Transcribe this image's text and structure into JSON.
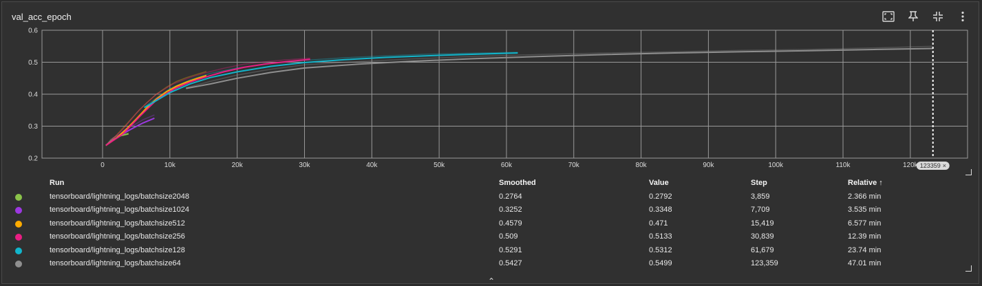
{
  "card": {
    "title": "val_acc_epoch",
    "tools": [
      {
        "name": "fit-domain-icon"
      },
      {
        "name": "pin-icon"
      },
      {
        "name": "collapse-icon"
      },
      {
        "name": "more-vert-icon"
      }
    ]
  },
  "chart_data": {
    "type": "line",
    "title": "val_acc_epoch",
    "xlim": [
      -9000,
      128500
    ],
    "ylim": [
      0.2,
      0.6
    ],
    "x_ticks": [
      0,
      10000,
      20000,
      30000,
      40000,
      50000,
      60000,
      70000,
      80000,
      90000,
      100000,
      110000,
      120000
    ],
    "x_tick_labels": [
      "0",
      "10k",
      "20k",
      "30k",
      "40k",
      "50k",
      "60k",
      "70k",
      "80k",
      "90k",
      "100k",
      "110k",
      "120k"
    ],
    "y_ticks": [
      0.2,
      0.3,
      0.4,
      0.5,
      0.6
    ],
    "y_tick_labels": [
      "0.2",
      "0.3",
      "0.4",
      "0.5",
      "0.6"
    ],
    "grid": true,
    "hover_step": 123359,
    "hover_step_label": "123359",
    "series": [
      {
        "name": "tensorboard/lightning_logs/batchsize2048",
        "color": "#8bc34a",
        "x": [
          500,
          1200,
          1930,
          2700,
          3859
        ],
        "y": [
          0.24,
          0.252,
          0.262,
          0.27,
          0.276
        ],
        "raw_x": [
          500,
          1200,
          1930,
          2700,
          3859
        ],
        "raw_y": [
          0.238,
          0.258,
          0.268,
          0.272,
          0.279
        ]
      },
      {
        "name": "tensorboard/lightning_logs/batchsize1024",
        "color": "#9c38e0",
        "x": [
          500,
          1500,
          2500,
          3500,
          4800,
          6000,
          7709
        ],
        "y": [
          0.24,
          0.256,
          0.268,
          0.282,
          0.297,
          0.31,
          0.325
        ],
        "raw_x": [
          500,
          1500,
          2500,
          3500,
          4800,
          6000,
          7709
        ],
        "raw_y": [
          0.24,
          0.262,
          0.275,
          0.292,
          0.305,
          0.32,
          0.335
        ]
      },
      {
        "name": "tensorboard/lightning_logs/batchsize512",
        "color": "#ffab00",
        "x": [
          500,
          2000,
          3500,
          5000,
          6500,
          8000,
          9500,
          11000,
          12500,
          14000,
          15419
        ],
        "y": [
          0.24,
          0.262,
          0.29,
          0.322,
          0.356,
          0.385,
          0.408,
          0.425,
          0.438,
          0.449,
          0.458
        ],
        "raw_x": [
          500,
          2000,
          3500,
          5000,
          6500,
          8000,
          9500,
          11000,
          12500,
          14000,
          15419
        ],
        "raw_y": [
          0.24,
          0.27,
          0.305,
          0.34,
          0.372,
          0.4,
          0.422,
          0.44,
          0.452,
          0.462,
          0.471
        ]
      },
      {
        "name": "tensorboard/lightning_logs/batchsize256",
        "color": "#e91e83",
        "x": [
          500,
          3000,
          5500,
          8000,
          10500,
          13000,
          15500,
          18000,
          21000,
          24000,
          27000,
          30839
        ],
        "y": [
          0.24,
          0.275,
          0.33,
          0.382,
          0.415,
          0.438,
          0.455,
          0.47,
          0.484,
          0.494,
          0.501,
          0.509
        ],
        "raw_x": [
          500,
          3000,
          5500,
          8000,
          10500,
          13000,
          15500,
          18000,
          21000,
          24000,
          27000,
          30839
        ],
        "raw_y": [
          0.24,
          0.29,
          0.352,
          0.4,
          0.432,
          0.452,
          0.468,
          0.481,
          0.494,
          0.501,
          0.507,
          0.513
        ]
      },
      {
        "name": "tensorboard/lightning_logs/batchsize128",
        "color": "#12b5cb",
        "x": [
          6200,
          8000,
          10000,
          13000,
          16000,
          20000,
          25000,
          30000,
          36000,
          42000,
          48000,
          54000,
          61679
        ],
        "y": [
          0.358,
          0.38,
          0.405,
          0.432,
          0.452,
          0.47,
          0.487,
          0.499,
          0.508,
          0.515,
          0.52,
          0.524,
          0.529
        ],
        "raw_x": [
          6200,
          8000,
          10000,
          13000,
          16000,
          20000,
          25000,
          30000,
          36000,
          42000,
          48000,
          54000,
          61679
        ],
        "raw_y": [
          0.36,
          0.388,
          0.418,
          0.445,
          0.465,
          0.482,
          0.496,
          0.506,
          0.514,
          0.52,
          0.525,
          0.528,
          0.531
        ]
      },
      {
        "name": "tensorboard/lightning_logs/batchsize64",
        "color": "#8f8f8f",
        "x": [
          12400,
          16000,
          20000,
          25000,
          30000,
          38000,
          46000,
          55000,
          65000,
          75000,
          85000,
          95000,
          105000,
          115000,
          123359
        ],
        "y": [
          0.418,
          0.432,
          0.45,
          0.468,
          0.482,
          0.494,
          0.503,
          0.511,
          0.518,
          0.524,
          0.529,
          0.533,
          0.536,
          0.54,
          0.543
        ],
        "raw_x": [
          12400,
          16000,
          20000,
          25000,
          30000,
          38000,
          46000,
          55000,
          65000,
          75000,
          85000,
          95000,
          105000,
          115000,
          123359
        ],
        "raw_y": [
          0.42,
          0.44,
          0.46,
          0.478,
          0.492,
          0.502,
          0.51,
          0.518,
          0.524,
          0.529,
          0.533,
          0.537,
          0.54,
          0.545,
          0.55
        ]
      }
    ]
  },
  "table": {
    "headers": {
      "run": "Run",
      "smoothed": "Smoothed",
      "value": "Value",
      "step": "Step",
      "relative": "Relative ↑"
    },
    "rows": [
      {
        "color": "#8bc34a",
        "run": "tensorboard/lightning_logs/batchsize2048",
        "smoothed": "0.2764",
        "value": "0.2792",
        "step": "3,859",
        "relative": "2.366 min"
      },
      {
        "color": "#9c38e0",
        "run": "tensorboard/lightning_logs/batchsize1024",
        "smoothed": "0.3252",
        "value": "0.3348",
        "step": "7,709",
        "relative": "3.535 min"
      },
      {
        "color": "#ffab00",
        "run": "tensorboard/lightning_logs/batchsize512",
        "smoothed": "0.4579",
        "value": "0.471",
        "step": "15,419",
        "relative": "6.577 min"
      },
      {
        "color": "#e91e83",
        "run": "tensorboard/lightning_logs/batchsize256",
        "smoothed": "0.509",
        "value": "0.5133",
        "step": "30,839",
        "relative": "12.39 min"
      },
      {
        "color": "#12b5cb",
        "run": "tensorboard/lightning_logs/batchsize128",
        "smoothed": "0.5291",
        "value": "0.5312",
        "step": "61,679",
        "relative": "23.74 min"
      },
      {
        "color": "#8f8f8f",
        "run": "tensorboard/lightning_logs/batchsize64",
        "smoothed": "0.5427",
        "value": "0.5499",
        "step": "123,359",
        "relative": "47.01 min"
      }
    ]
  }
}
